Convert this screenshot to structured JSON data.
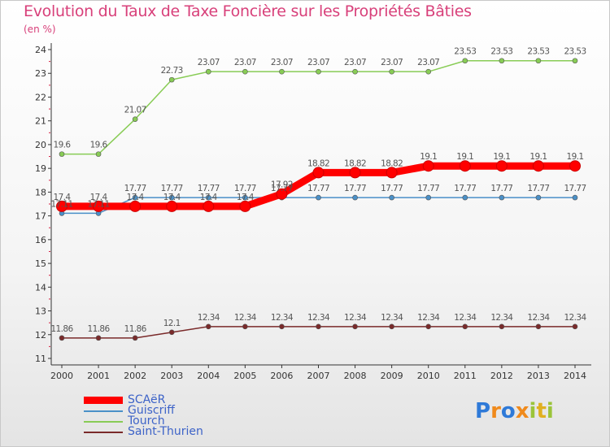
{
  "header": {
    "title": "Evolution du Taux de Taxe Foncière sur les Propriétés Bâties",
    "unit": "(en %)"
  },
  "logo": {
    "text": "Proxiti",
    "colors": [
      "#2f7ad8",
      "#f08a1c",
      "#9bc43a",
      "#e0b020"
    ]
  },
  "chart_data": {
    "type": "line",
    "title": "Evolution du Taux de Taxe Foncière sur les Propriétés Bâties",
    "ylabel": "(en %)",
    "xlabel": "",
    "ylim": [
      11,
      24
    ],
    "yticks": [
      11,
      12,
      13,
      14,
      15,
      16,
      17,
      18,
      19,
      20,
      21,
      22,
      23,
      24
    ],
    "grid": false,
    "legend": "bottom-left",
    "x": [
      "2000",
      "2001",
      "2002",
      "2003",
      "2004",
      "2005",
      "2006",
      "2007",
      "2008",
      "2009",
      "2010",
      "2011",
      "2012",
      "2013",
      "2014"
    ],
    "series": [
      {
        "name": "SCAëR",
        "color": "#ff0000",
        "values": [
          17.4,
          17.4,
          17.4,
          17.4,
          17.4,
          17.4,
          17.92,
          18.82,
          18.82,
          18.82,
          19.1,
          19.1,
          19.1,
          19.1,
          19.1
        ],
        "labels": [
          "17.4",
          "17.4",
          "17.4",
          "17.4",
          "17.4",
          "17.4",
          "17.92",
          "18.82",
          "18.82",
          "18.82",
          "19.1",
          "19.1",
          "19.1",
          "19.1",
          "19.1"
        ]
      },
      {
        "name": "Guiscriff",
        "color": "#4a90c8",
        "values": [
          17.11,
          17.11,
          17.77,
          17.77,
          17.77,
          17.77,
          17.77,
          17.77,
          17.77,
          17.77,
          17.77,
          17.77,
          17.77,
          17.77,
          17.77
        ],
        "labels": [
          "17.11",
          "17.11",
          "17.77",
          "17.77",
          "17.77",
          "17.77",
          "17.77",
          "17.77",
          "17.77",
          "17.77",
          "17.77",
          "17.77",
          "17.77",
          "17.77",
          "17.77"
        ]
      },
      {
        "name": "Tourch",
        "color": "#88cc55",
        "values": [
          19.6,
          19.6,
          21.07,
          22.73,
          23.07,
          23.07,
          23.07,
          23.07,
          23.07,
          23.07,
          23.07,
          23.53,
          23.53,
          23.53,
          23.53
        ],
        "labels": [
          "19.6",
          "19.6",
          "21.07",
          "22.73",
          "23.07",
          "23.07",
          "23.07",
          "23.07",
          "23.07",
          "23.07",
          "23.07",
          "23.53",
          "23.53",
          "23.53",
          "23.53"
        ]
      },
      {
        "name": "Saint-Thurien",
        "color": "#7a2a2a",
        "values": [
          11.86,
          11.86,
          11.86,
          12.1,
          12.34,
          12.34,
          12.34,
          12.34,
          12.34,
          12.34,
          12.34,
          12.34,
          12.34,
          12.34,
          12.34
        ],
        "labels": [
          "11.86",
          "11.86",
          "11.86",
          "12.1",
          "12.34",
          "12.34",
          "12.34",
          "12.34",
          "12.34",
          "12.34",
          "12.34",
          "12.34",
          "12.34",
          "12.34",
          "12.34"
        ]
      }
    ]
  }
}
